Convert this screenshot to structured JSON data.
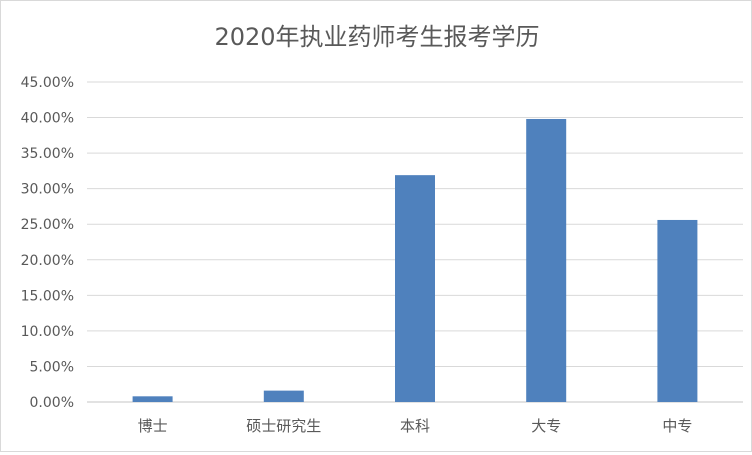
{
  "chart_data": {
    "type": "bar",
    "title": "2020年执业药师考生报考学历",
    "categories": [
      "博士",
      "硕士研究生",
      "本科",
      "大专",
      "中专"
    ],
    "values": [
      0.8,
      1.6,
      31.9,
      39.8,
      25.6
    ],
    "ylim": [
      0,
      45
    ],
    "yticks": [
      "0.00%",
      "5.00%",
      "10.00%",
      "15.00%",
      "20.00%",
      "25.00%",
      "30.00%",
      "35.00%",
      "40.00%",
      "45.00%"
    ],
    "grid": true,
    "bar_color": "#4f81bd",
    "xlabel": "",
    "ylabel": ""
  }
}
